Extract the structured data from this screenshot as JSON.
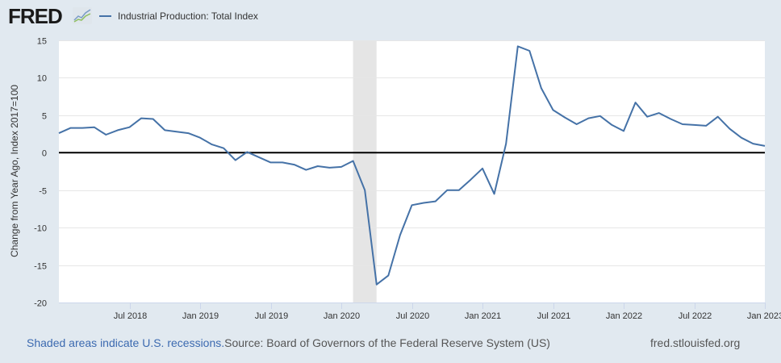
{
  "header": {
    "logo_text": "FRED",
    "legend_label": "Industrial Production: Total Index"
  },
  "colors": {
    "series": "#4572a7",
    "background": "#e1e9f0",
    "plot_background": "#ffffff",
    "recession": "#e5e5e5",
    "zero_line": "#000000",
    "note_link": "#3c6ab0"
  },
  "footer": {
    "recession_note": "Shaded areas indicate U.S. recessions.",
    "source": "Source: Board of Governors of the Federal Reserve System (US)",
    "site": "fred.stlouisfed.org"
  },
  "chart_data": {
    "type": "line",
    "title": "Industrial Production: Total Index",
    "xlabel": "",
    "ylabel": "Change from Year Ago, Index 2017=100",
    "ylim": [
      -20,
      15
    ],
    "yticks": [
      15,
      10,
      5,
      0,
      -5,
      -10,
      -15,
      -20
    ],
    "x_start": "2018-01",
    "x_end": "2023-01",
    "xticks": [
      {
        "label": "Jul 2018",
        "month_index": 6
      },
      {
        "label": "Jan 2019",
        "month_index": 12
      },
      {
        "label": "Jul 2019",
        "month_index": 18
      },
      {
        "label": "Jan 2020",
        "month_index": 24
      },
      {
        "label": "Jul 2020",
        "month_index": 30
      },
      {
        "label": "Jan 2021",
        "month_index": 36
      },
      {
        "label": "Jul 2021",
        "month_index": 42
      },
      {
        "label": "Jan 2022",
        "month_index": 48
      },
      {
        "label": "Jul 2022",
        "month_index": 54
      },
      {
        "label": "Jan 2023",
        "month_index": 60
      }
    ],
    "grid": true,
    "recessions": [
      {
        "start_month_index": 25,
        "end_month_index": 27,
        "label": "Feb 2020 – Apr 2020"
      }
    ],
    "series": [
      {
        "name": "Industrial Production: Total Index",
        "frequency": "monthly",
        "values": [
          2.6,
          3.3,
          3.3,
          3.4,
          2.4,
          3.0,
          3.4,
          4.6,
          4.5,
          3.0,
          2.8,
          2.6,
          2.0,
          1.1,
          0.6,
          -1.0,
          0.1,
          -0.6,
          -1.3,
          -1.3,
          -1.6,
          -2.3,
          -1.8,
          -2.0,
          -1.9,
          -1.1,
          -5.0,
          -17.6,
          -16.4,
          -11.0,
          -7.0,
          -6.7,
          -6.5,
          -5.0,
          -5.0,
          -3.6,
          -2.1,
          -5.5,
          1.2,
          14.2,
          13.6,
          8.6,
          5.7,
          4.7,
          3.8,
          4.6,
          4.9,
          3.7,
          2.9,
          6.7,
          4.8,
          5.3,
          4.5,
          3.8,
          3.7,
          3.6,
          4.8,
          3.2,
          2.0,
          1.2,
          0.9
        ]
      }
    ]
  }
}
